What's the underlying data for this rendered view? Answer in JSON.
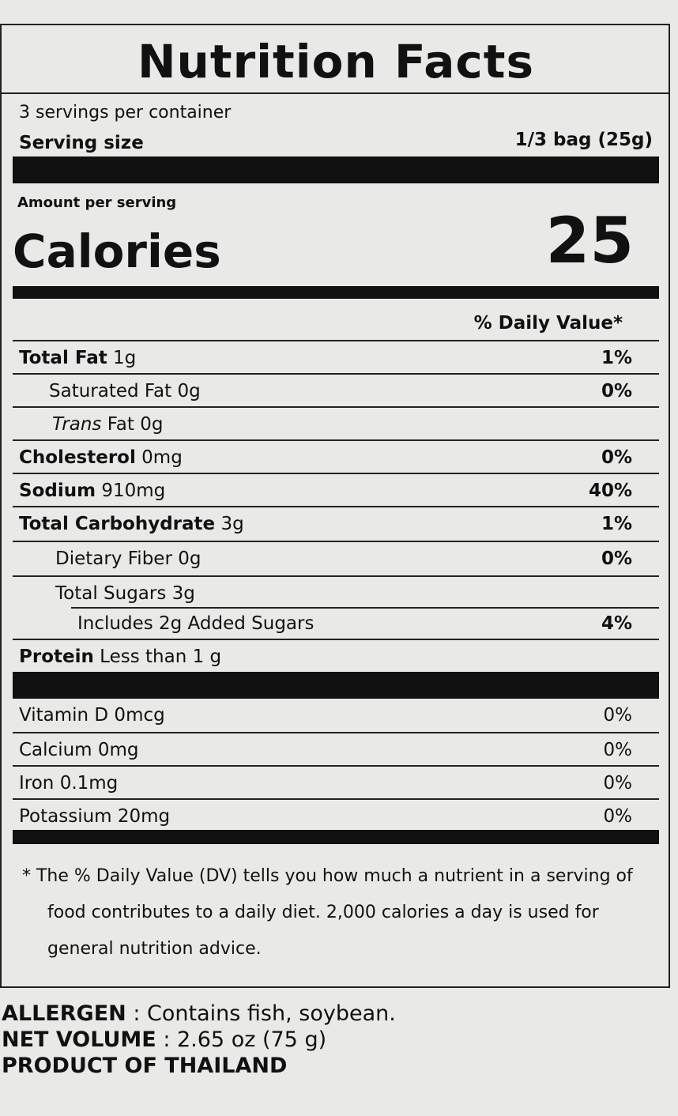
{
  "label": {
    "title": "Nutrition Facts",
    "servings": "3 servings per container",
    "serving_size_label": "Serving size",
    "serving_size": "1/3 bag (25g)",
    "amount_per_serving": "Amount per serving",
    "calories_label": "Calories",
    "calories": "25",
    "dv_header": "% Daily Value*",
    "rows": [
      {
        "label": "Total Fat",
        "amount": "1g",
        "dv": "1%"
      },
      {
        "label": "Saturated Fat",
        "amount": "0g",
        "dv": "0%"
      },
      {
        "label_italic": "Trans",
        "label": "Fat",
        "amount": "0g"
      },
      {
        "label": "Cholesterol",
        "amount": "0mg",
        "dv": "0%"
      },
      {
        "label": "Sodium",
        "amount": "910mg",
        "dv": "40%"
      },
      {
        "label": "Total Carbohydrate",
        "amount": "3g",
        "dv": "1%"
      },
      {
        "label": "Dietary Fiber",
        "amount": "0g",
        "dv": "0%"
      },
      {
        "label": "Total Sugars",
        "amount": "3g"
      },
      {
        "label": "Includes 2g Added Sugars",
        "dv": "4%"
      },
      {
        "label": "Protein",
        "amount": "Less than 1 g"
      }
    ],
    "vitamins": [
      {
        "label": "Vitamin D 0mcg",
        "dv": "0%"
      },
      {
        "label": "Calcium 0mg",
        "dv": "0%"
      },
      {
        "label": "Iron 0.1mg",
        "dv": "0%"
      },
      {
        "label": "Potassium 20mg",
        "dv": "0%"
      }
    ],
    "footnote": "* The % Daily Value (DV) tells you how much a nutrient in a serving of food contributes to a daily diet. 2,000 calories a day is used for general nutrition advice."
  },
  "info": [
    {
      "label": "ALLERGEN",
      "text": ": Contains fish, soybean."
    },
    {
      "label": "NET VOLUME",
      "text": ": 2.65 oz (75 g)"
    },
    {
      "label": "PRODUCT OF THAILAND"
    }
  ]
}
